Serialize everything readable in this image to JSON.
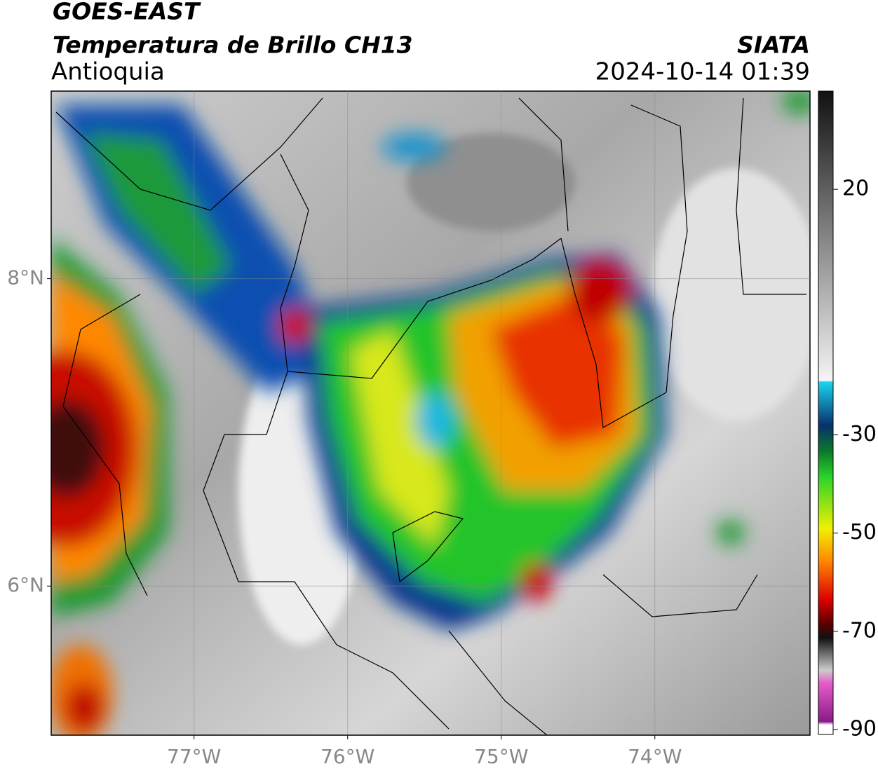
{
  "header": {
    "title": "GOES-EAST",
    "subtitle": "Temperatura de Brillo CH13",
    "region": "Antioquia",
    "source": "SIATA",
    "timestamp": "2024-10-14 01:39"
  },
  "map": {
    "xlim": [
      -77.93,
      -72.99
    ],
    "ylim": [
      5.03,
      9.22
    ],
    "xticks": [
      {
        "value": -77,
        "label": "77°W"
      },
      {
        "value": -76,
        "label": "76°W"
      },
      {
        "value": -75,
        "label": "75°W"
      },
      {
        "value": -74,
        "label": "74°W"
      }
    ],
    "yticks": [
      {
        "value": 8,
        "label": "8°N"
      },
      {
        "value": 6,
        "label": "6°N"
      }
    ]
  },
  "colorbar": {
    "lim": [
      -91,
      40
    ],
    "ticks": [
      20,
      -30,
      -50,
      -70,
      -90
    ]
  }
}
